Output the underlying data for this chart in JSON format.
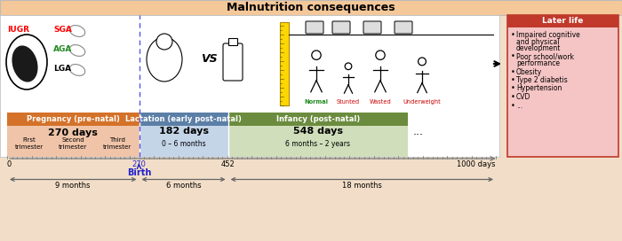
{
  "title": "Malnutrition consequences",
  "title_bg": "#F5C89A",
  "pregnancy_label": "Pregnancy (pre-natal)",
  "pregnancy_days": "270 days",
  "pregnancy_color_header": "#D4722A",
  "pregnancy_color_body": "#F0C4A8",
  "pregnancy_trimesters": [
    "First\ntrimester",
    "Second\ntrimester",
    "Third\ntrimester"
  ],
  "lactation_label": "Lactation (early post-natal)",
  "lactation_days": "182 days",
  "lactation_sub": "0 – 6 months",
  "lactation_color_header": "#5B7FA6",
  "lactation_color_body": "#C5D5E8",
  "infancy_label": "Infancy (post-natal)",
  "infancy_days": "548 days",
  "infancy_sub": "6 months – 2 years",
  "infancy_color_header": "#6B8C3E",
  "infancy_color_body": "#D0DEBB",
  "later_life_title": "Later life",
  "later_life_title_bg": "#C0392B",
  "later_life_bg": "#F5C4C4",
  "later_life_items": [
    "Impaired cognitive\nand physical\ndevelopment",
    "Poor school/work\nperformance",
    "Obesity",
    "Type 2 diabetis",
    "Hypertension",
    "CVD",
    "..."
  ],
  "iugr_label": "IUGR",
  "sga_label": "SGA",
  "aga_label": "AGA",
  "lga_label": "LGA",
  "normal_label": "Normal",
  "stunted_label": "Stunted",
  "wasted_label": "Wasted",
  "underweight_label": "Underweight",
  "birth_label": "Birth",
  "months_9": "9 months",
  "months_6": "6 months",
  "months_18": "18 months",
  "outer_bg": "#F2DEC8"
}
